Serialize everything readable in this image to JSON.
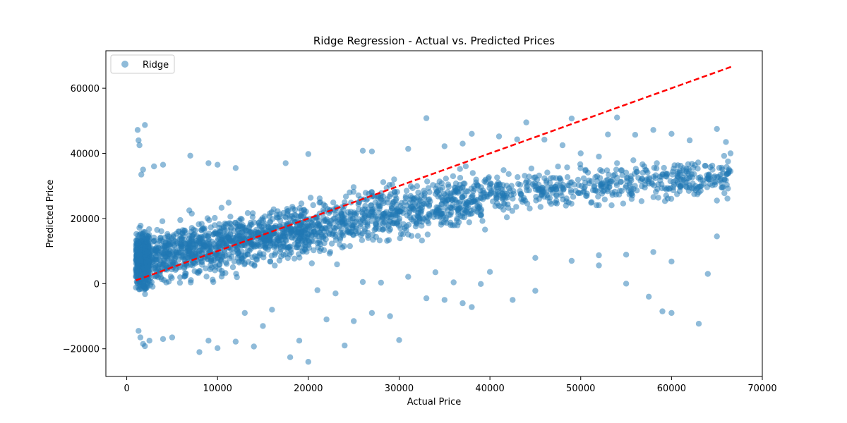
{
  "chart_data": {
    "type": "scatter",
    "title": "Ridge Regression - Actual vs. Predicted Prices",
    "xlabel": "Actual Price",
    "ylabel": "Predicted Price",
    "xlim": [
      -2300,
      70000
    ],
    "ylim": [
      -28500,
      71500
    ],
    "xticks": [
      0,
      10000,
      20000,
      30000,
      40000,
      50000,
      60000,
      70000
    ],
    "yticks": [
      -20000,
      0,
      20000,
      40000,
      60000
    ],
    "grid": false,
    "legend_position": "top-left",
    "series": [
      {
        "name": "Ridge",
        "color": "#1f77b4",
        "alpha": 0.5,
        "points": [
          [
            1200,
            47200
          ],
          [
            1300,
            44000
          ],
          [
            1400,
            42500
          ],
          [
            1600,
            33500
          ],
          [
            1800,
            35000
          ],
          [
            2000,
            48700
          ],
          [
            3000,
            36000
          ],
          [
            4000,
            36500
          ],
          [
            7000,
            39300
          ],
          [
            9000,
            37000
          ],
          [
            10000,
            36500
          ],
          [
            12000,
            35500
          ],
          [
            17500,
            37000
          ],
          [
            20000,
            39800
          ],
          [
            1300,
            -14500
          ],
          [
            1500,
            -16500
          ],
          [
            1800,
            -18500
          ],
          [
            2000,
            -19200
          ],
          [
            2500,
            -17500
          ],
          [
            4000,
            -17000
          ],
          [
            5000,
            -16500
          ],
          [
            8000,
            -21000
          ],
          [
            9000,
            -17500
          ],
          [
            10000,
            -19800
          ],
          [
            12000,
            -17800
          ],
          [
            14000,
            -19300
          ],
          [
            18000,
            -22600
          ],
          [
            19000,
            -17500
          ],
          [
            20000,
            -24000
          ],
          [
            24000,
            -19000
          ],
          [
            30000,
            -17300
          ],
          [
            15000,
            -13000
          ],
          [
            22000,
            -11000
          ],
          [
            25000,
            -11500
          ],
          [
            27000,
            -9000
          ],
          [
            29000,
            -10000
          ],
          [
            33000,
            -4500
          ],
          [
            35000,
            -5000
          ],
          [
            37000,
            -6000
          ],
          [
            38000,
            -7200
          ],
          [
            42500,
            -5000
          ],
          [
            45000,
            -2200
          ],
          [
            49000,
            7000
          ],
          [
            52000,
            5600
          ],
          [
            55000,
            0
          ],
          [
            57500,
            -4000
          ],
          [
            59000,
            -8500
          ],
          [
            60000,
            -9000
          ],
          [
            63000,
            -12300
          ],
          [
            64000,
            3000
          ],
          [
            65000,
            14500
          ],
          [
            66500,
            40000
          ],
          [
            66000,
            43500
          ],
          [
            65000,
            47500
          ],
          [
            33000,
            50800
          ],
          [
            44000,
            49500
          ],
          [
            49000,
            50700
          ],
          [
            54000,
            51000
          ],
          [
            53000,
            45800
          ],
          [
            56000,
            45700
          ],
          [
            58000,
            47200
          ],
          [
            60000,
            46000
          ],
          [
            62000,
            44000
          ],
          [
            60000,
            6800
          ],
          [
            58000,
            9700
          ],
          [
            55000,
            8900
          ],
          [
            52000,
            8700
          ],
          [
            45000,
            7900
          ],
          [
            40000,
            3600
          ],
          [
            39000,
            -100
          ],
          [
            36000,
            400
          ],
          [
            34000,
            3500
          ],
          [
            31000,
            2100
          ],
          [
            28000,
            300
          ],
          [
            26000,
            500
          ],
          [
            23000,
            -3000
          ],
          [
            21000,
            -2000
          ],
          [
            16000,
            -8000
          ],
          [
            13000,
            -9000
          ],
          [
            26000,
            40800
          ],
          [
            27000,
            40600
          ],
          [
            31000,
            41400
          ],
          [
            35000,
            42200
          ],
          [
            37000,
            43000
          ],
          [
            38000,
            46000
          ],
          [
            41000,
            45200
          ],
          [
            43000,
            44300
          ],
          [
            46000,
            44200
          ],
          [
            48000,
            42500
          ],
          [
            50000,
            40000
          ],
          [
            52000,
            39000
          ],
          [
            54000,
            37000
          ],
          [
            57000,
            36000
          ],
          [
            59000,
            33500
          ],
          [
            61000,
            30000
          ],
          [
            63000,
            28000
          ],
          [
            65000,
            25500
          ],
          [
            66500,
            34500
          ],
          [
            62500,
            27500
          ]
        ]
      }
    ],
    "reference_line": {
      "from": [
        1000,
        1000
      ],
      "to": [
        66700,
        66700
      ],
      "color": "#ff0000",
      "style": "dashed"
    }
  }
}
